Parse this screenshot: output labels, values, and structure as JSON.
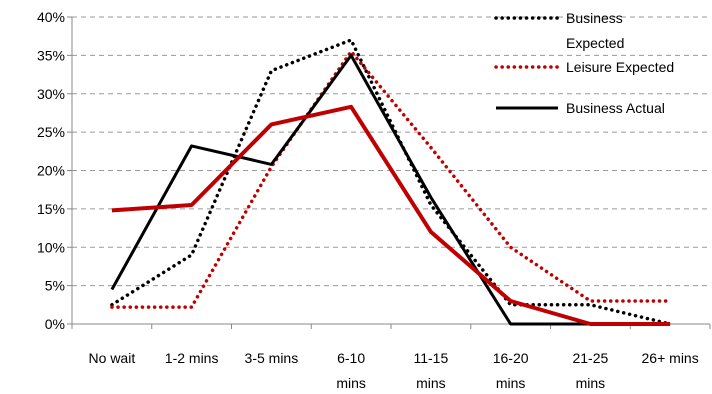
{
  "chart_data": {
    "type": "line",
    "title": "",
    "xlabel": "",
    "ylabel": "",
    "categories": [
      "No wait",
      "1-2 mins",
      "3-5 mins",
      "6-10 mins",
      "11-15 mins",
      "16-20 mins",
      "21-25 mins",
      "26+ mins"
    ],
    "category_lines": [
      [
        "No wait"
      ],
      [
        "1-2 mins"
      ],
      [
        "3-5 mins"
      ],
      [
        "6-10",
        "mins"
      ],
      [
        "11-15",
        "mins"
      ],
      [
        "16-20",
        "mins"
      ],
      [
        "21-25",
        "mins"
      ],
      [
        "26+ mins"
      ]
    ],
    "ylim": [
      0,
      0.4
    ],
    "yticks": [
      0,
      0.05,
      0.1,
      0.15,
      0.2,
      0.25,
      0.3,
      0.35,
      0.4
    ],
    "ytick_labels": [
      "0%",
      "5%",
      "10%",
      "15%",
      "20%",
      "25%",
      "30%",
      "35%",
      "40%"
    ],
    "grid": "horizontal-dashed",
    "legend_position": "top-right",
    "series": [
      {
        "name": "Business Expected",
        "name_lines": [
          "Business",
          "Expected"
        ],
        "style": "dotted",
        "color": "#000000",
        "values": [
          0.025,
          0.09,
          0.33,
          0.37,
          0.155,
          0.025,
          0.025,
          0.0
        ]
      },
      {
        "name": "Leisure Expected",
        "name_lines": [
          "Leisure Expected"
        ],
        "style": "dotted",
        "color": "#c00000",
        "values": [
          0.022,
          0.022,
          0.205,
          0.355,
          0.23,
          0.1,
          0.03,
          0.03
        ]
      },
      {
        "name": "Business Actual",
        "name_lines": [
          "Business Actual"
        ],
        "style": "solid",
        "color": "#000000",
        "values": [
          0.045,
          0.232,
          0.208,
          0.35,
          0.165,
          0.0,
          0.0,
          0.0
        ]
      },
      {
        "name": "",
        "name_lines": [],
        "style": "solid-thick",
        "color": "#c00000",
        "values": [
          0.148,
          0.155,
          0.26,
          0.283,
          0.12,
          0.03,
          0.0,
          0.0
        ]
      }
    ]
  }
}
